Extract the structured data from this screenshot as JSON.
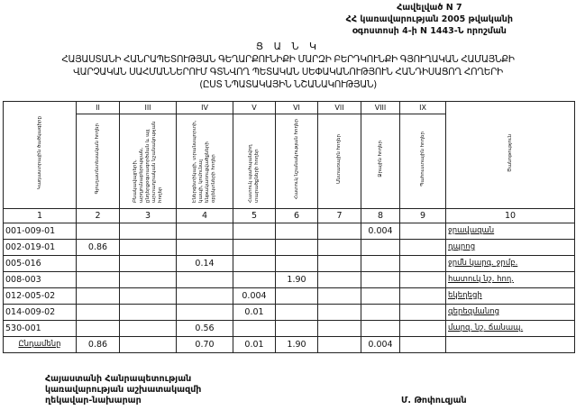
{
  "annex": [
    "Հավելված N 7",
    "ՀՀ կառավարության 2005 թվականի",
    "օգոստոսի 4-ի N 1443-Ն որոշման"
  ],
  "title": [
    "Ց Ա Ն Կ",
    "ՀԱՅԱՍՏԱՆԻ ՀԱՆՐԱՊԵՏՈՒԹՅԱՆ ԳԵՂԱՐՔՈՒՆԻՔԻ ՄԱՐԶԻ ԲԵՐԴԿՈՒՆՔԻ ԳՅՈՒՂԱԿԱՆ ՀԱՄԱՅՆՔԻ",
    "ՎԱՐՉԱԿԱՆ ՍԱՀՄԱՆՆԵՐՈՒՄ ԳՏՆՎՈՂ ՊԵՏԱԿԱՆ ՍԵՓԱԿԱՆՈՒԹՅՈՒՆ ՀԱՆԴԻՍԱՑՈՂ ՀՈՂԵՐԻ",
    "(ԸՍՏ ՆՊԱՏԱԿԱՅԻՆ ՆՇԱՆԱԿՈՒԹՅԱՆ)"
  ],
  "table": {
    "roman": [
      "II",
      "III",
      "IV",
      "V",
      "VI",
      "VII",
      "VIII",
      "IX"
    ],
    "headers": [
      "Կադաստրային ծածկագիրը",
      "Գյուղատնտեսական հողեր",
      "Բնակավայրերի, արդյունաբերության, ընդերքօգտագործման և այլ արտադրական նշանակության հողեր",
      "Էներգետիկայի, տրանսպորտի, կապի, կոմունալ ենթակառուցվածքների օբյեկտների հողեր",
      "Հատուկ պահպանվող տարածքների հողեր",
      "Հատուկ նշանակության հողեր",
      "Անտառային հողեր",
      "Ջրային հողեր",
      "Պահուստային հողեր",
      "Ծանոթություն"
    ],
    "numbers": [
      "1",
      "2",
      "3",
      "4",
      "5",
      "6",
      "7",
      "8",
      "9",
      "10"
    ],
    "rows": [
      [
        "001-009-01",
        "",
        "",
        "",
        "",
        "",
        "",
        "0.004",
        "",
        "ջրավազան"
      ],
      [
        "002-019-01",
        "0.86",
        "",
        "",
        "",
        "",
        "",
        "",
        "",
        "դպրոց"
      ],
      [
        "005-016",
        "",
        "",
        "0.14",
        "",
        "",
        "",
        "",
        "",
        "ջրմն կարգ. ջրմբ."
      ],
      [
        "008-003",
        "",
        "",
        "",
        "",
        "1.90",
        "",
        "",
        "",
        "հատուկ նշ. հող."
      ],
      [
        "012-005-02",
        "",
        "",
        "",
        "0.004",
        "",
        "",
        "",
        "",
        "եկեղեցի"
      ],
      [
        "014-009-02",
        "",
        "",
        "",
        "0.01",
        "",
        "",
        "",
        "",
        "գերեզմանոց"
      ],
      [
        "530-001",
        "",
        "",
        "0.56",
        "",
        "",
        "",
        "",
        "",
        "մարզ. նշ. ճանապ."
      ],
      [
        "Ընդամենը",
        "0.86",
        "",
        "0.70",
        "0.01",
        "1.90",
        "",
        "0.004",
        "",
        ""
      ]
    ]
  },
  "signature": {
    "position": [
      "Հայաստանի Հանրապետության",
      "կառավարության աշխատակազմի",
      "ղեկավար-նախարար"
    ],
    "name": "Մ. Թոփուզյան"
  }
}
